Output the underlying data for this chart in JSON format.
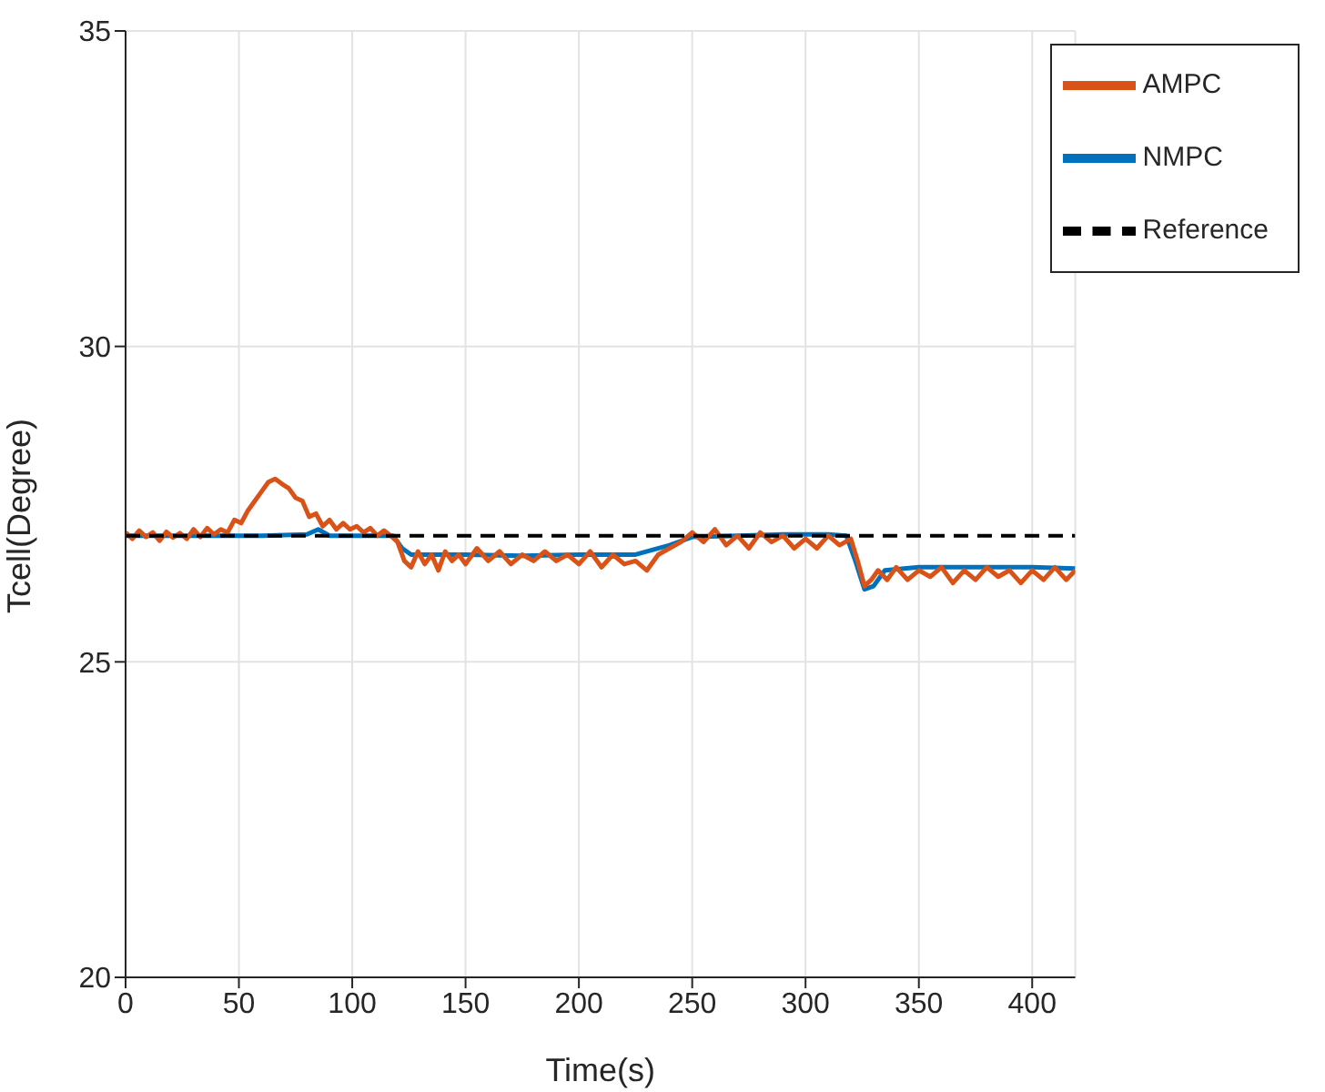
{
  "chart_data": {
    "type": "line",
    "xlabel": "Time(s)",
    "ylabel": "Tcell(Degree)",
    "xlim": [
      0,
      419
    ],
    "xticks": [
      0,
      50,
      100,
      150,
      200,
      250,
      300,
      350,
      400
    ],
    "ylim": [
      20,
      35
    ],
    "yticks": [
      20,
      25,
      30,
      35
    ],
    "grid": true,
    "legend": "top right",
    "marker": "none",
    "series": [
      {
        "name": "NMPC",
        "color": "#0072bd",
        "line_style": "solid",
        "x": [
          0,
          20,
          40,
          60,
          80,
          85,
          90,
          100,
          110,
          118,
          122,
          126,
          150,
          175,
          200,
          225,
          240,
          250,
          270,
          290,
          310,
          318,
          322,
          326,
          330,
          335,
          350,
          375,
          400,
          419
        ],
        "values": [
          27.0,
          27.0,
          27.0,
          27.0,
          27.02,
          27.1,
          27.0,
          27.0,
          27.0,
          27.0,
          26.8,
          26.7,
          26.7,
          26.68,
          26.7,
          26.7,
          26.85,
          26.98,
          27.0,
          27.02,
          27.02,
          27.0,
          26.6,
          26.15,
          26.2,
          26.45,
          26.5,
          26.5,
          26.5,
          26.48
        ]
      },
      {
        "name": "AMPC",
        "color": "#d95319",
        "line_style": "solid",
        "x": [
          0,
          3,
          6,
          9,
          12,
          15,
          18,
          21,
          24,
          27,
          30,
          33,
          36,
          39,
          42,
          45,
          48,
          51,
          54,
          57,
          60,
          63,
          66,
          69,
          72,
          75,
          78,
          81,
          84,
          87,
          90,
          93,
          96,
          99,
          102,
          105,
          108,
          111,
          114,
          117,
          120,
          123,
          126,
          129,
          132,
          135,
          138,
          141,
          144,
          147,
          150,
          155,
          160,
          165,
          170,
          175,
          180,
          185,
          190,
          195,
          200,
          205,
          210,
          215,
          220,
          225,
          230,
          235,
          240,
          245,
          250,
          255,
          260,
          265,
          270,
          275,
          280,
          285,
          290,
          295,
          300,
          305,
          310,
          315,
          320,
          323,
          326,
          329,
          332,
          336,
          340,
          345,
          350,
          355,
          360,
          365,
          370,
          375,
          380,
          385,
          390,
          395,
          400,
          405,
          410,
          415,
          419
        ],
        "values": [
          27.05,
          26.95,
          27.08,
          26.98,
          27.05,
          26.92,
          27.06,
          26.97,
          27.04,
          26.95,
          27.1,
          26.98,
          27.12,
          27.02,
          27.1,
          27.05,
          27.25,
          27.2,
          27.4,
          27.55,
          27.7,
          27.85,
          27.9,
          27.82,
          27.75,
          27.6,
          27.55,
          27.3,
          27.35,
          27.15,
          27.25,
          27.1,
          27.2,
          27.1,
          27.15,
          27.05,
          27.12,
          27.0,
          27.08,
          27.0,
          26.9,
          26.6,
          26.5,
          26.75,
          26.55,
          26.7,
          26.45,
          26.75,
          26.6,
          26.7,
          26.55,
          26.8,
          26.6,
          26.75,
          26.55,
          26.7,
          26.6,
          26.75,
          26.6,
          26.7,
          26.55,
          26.75,
          26.5,
          26.7,
          26.55,
          26.6,
          26.45,
          26.7,
          26.8,
          26.9,
          27.05,
          26.9,
          27.1,
          26.85,
          27.0,
          26.8,
          27.05,
          26.9,
          27.0,
          26.8,
          26.95,
          26.8,
          27.0,
          26.85,
          26.95,
          26.6,
          26.2,
          26.3,
          26.45,
          26.3,
          26.5,
          26.3,
          26.45,
          26.35,
          26.5,
          26.25,
          26.45,
          26.3,
          26.5,
          26.35,
          26.45,
          26.25,
          26.45,
          26.3,
          26.5,
          26.3,
          26.45
        ]
      },
      {
        "name": "Reference",
        "color": "#000000",
        "line_style": "dashed",
        "x": [
          0,
          419
        ],
        "values": [
          27,
          27
        ]
      }
    ]
  }
}
